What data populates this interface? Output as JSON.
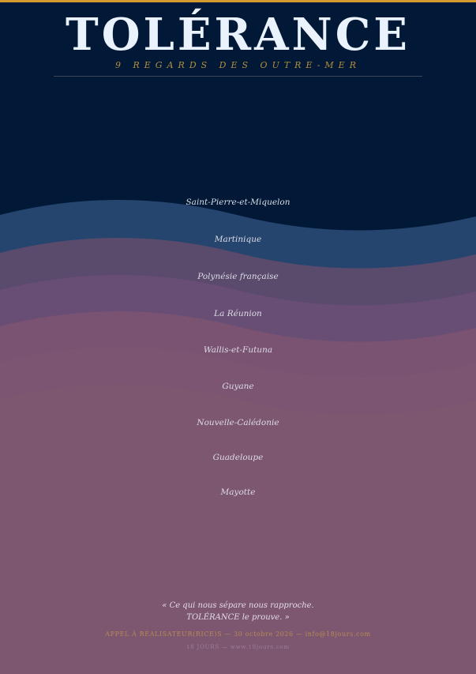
{
  "header": {
    "title": "TOLÉRANCE",
    "subtitle": "9 REGARDS DES OUTRE-MER"
  },
  "regions": [
    "Saint-Pierre-et-Miquelon",
    "Martinique",
    "Polynésie française",
    "La Réunion",
    "Wallis-et-Futuna",
    "Guyane",
    "Nouvelle-Calédonie",
    "Guadeloupe",
    "Mayotte"
  ],
  "quote": {
    "line1": "« Ce qui nous sépare nous rapproche.",
    "line2": "TOLÉRANCE le prouve. »"
  },
  "call": "APPEL À RÉALISATEUR(RICE)S — 30 octobre 2026 — info@18jours.com",
  "footer": "18 JOURS — www.18jours.com",
  "colors": {
    "background": "#011937",
    "accent": "#d39a2f",
    "bands": [
      "#25456e",
      "#5a4a6c",
      "#684e74",
      "#7a5272",
      "#7c5572",
      "#7d5770"
    ]
  }
}
